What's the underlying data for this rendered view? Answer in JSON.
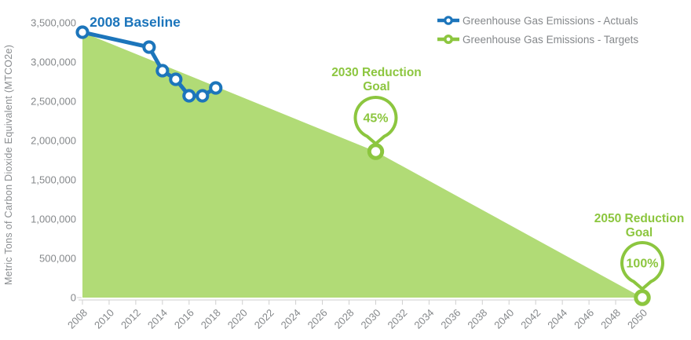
{
  "colors": {
    "actuals_blue": "#1C75BB",
    "targets_green": "#8CC63F",
    "area_fill": "#B1DB76",
    "axis_text": "#85888B",
    "tick_line": "#CFCFCF",
    "background": "#FFFFFF"
  },
  "chart_data": {
    "type": "area",
    "title": "",
    "xlabel": "",
    "ylabel": "Metric Tons of Carbon Dioxide Equivalent (MTCO2e)",
    "xlim": [
      2008,
      2050
    ],
    "ylim": [
      0,
      3500000
    ],
    "grid": false,
    "legend_position": "top-right",
    "x_ticks": [
      2008,
      2010,
      2012,
      2014,
      2016,
      2018,
      2020,
      2022,
      2024,
      2026,
      2028,
      2030,
      2032,
      2034,
      2036,
      2038,
      2040,
      2042,
      2044,
      2046,
      2048,
      2050
    ],
    "y_ticks": [
      0,
      500000,
      1000000,
      1500000,
      2000000,
      2500000,
      3000000,
      3500000
    ],
    "y_tick_labels": [
      "0",
      "500,000",
      "1,000,000",
      "1,500,000",
      "2,000,000",
      "2,500,000",
      "3,000,000",
      "3,500,000"
    ],
    "series": [
      {
        "name": "Greenhouse Gas Emissions - Actuals",
        "kind": "line",
        "color": "#1C75BB",
        "marker": "open-circle",
        "x": [
          2008,
          2013,
          2014,
          2015,
          2016,
          2017,
          2018
        ],
        "y": [
          3380000,
          3190000,
          2890000,
          2780000,
          2570000,
          2570000,
          2670000
        ]
      },
      {
        "name": "Greenhouse Gas Emissions - Targets",
        "kind": "area",
        "color": "#8CC63F",
        "fill": "#B1DB76",
        "marker": "open-circle",
        "x": [
          2008,
          2030,
          2050
        ],
        "y": [
          3380000,
          1860000,
          0
        ],
        "marker_x": [
          2030,
          2050
        ],
        "marker_y": [
          1860000,
          0
        ]
      }
    ],
    "annotations": [
      {
        "id": "baseline",
        "text": "2008 Baseline",
        "color": "#1C75BB"
      },
      {
        "id": "goal2030",
        "line1": "2030 Reduction",
        "line2": "Goal",
        "badge": "45%",
        "year": 2030,
        "value": 1860000,
        "color": "#8CC63F"
      },
      {
        "id": "goal2050",
        "line1": "2050 Reduction",
        "line2": "Goal",
        "badge": "100%",
        "year": 2050,
        "value": 0,
        "color": "#8CC63F"
      }
    ],
    "legend": [
      {
        "label": "Greenhouse Gas Emissions - Actuals",
        "color": "#1C75BB"
      },
      {
        "label": "Greenhouse Gas Emissions - Targets",
        "color": "#8CC63F"
      }
    ]
  }
}
